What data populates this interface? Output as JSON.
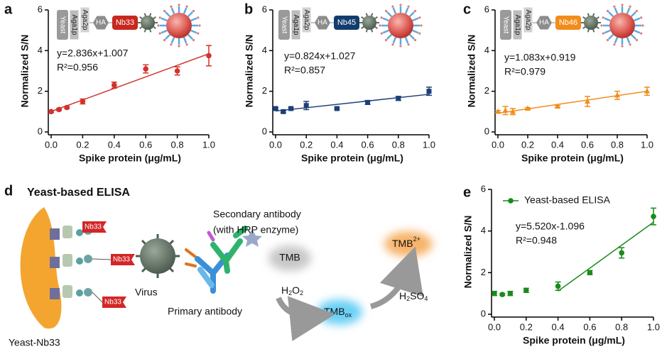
{
  "panel_labels": [
    "a",
    "b",
    "c",
    "d",
    "e"
  ],
  "chart_data": [
    {
      "type": "scatter",
      "x_label": "Spike protein (μg/mL)",
      "y_label": "Normalized S/N",
      "xlim": [
        0,
        1
      ],
      "ylim": [
        0,
        6
      ],
      "xticks": [
        {
          "value": 0,
          "label": "0.0"
        },
        {
          "value": 0.2,
          "label": "0.2"
        },
        {
          "value": 0.4,
          "label": "0.4"
        },
        {
          "value": 0.6,
          "label": "0.6"
        },
        {
          "value": 0.8,
          "label": "0.8"
        },
        {
          "value": 1,
          "label": "1.0"
        }
      ],
      "yticks": [
        0,
        2,
        4,
        6
      ],
      "x": [
        0,
        0.05,
        0.1,
        0.2,
        0.4,
        0.6,
        0.8,
        1.0
      ],
      "series": [
        {
          "color": "#d2322d",
          "marker": "circle",
          "values": [
            1.0,
            1.1,
            1.2,
            1.5,
            2.3,
            3.1,
            3.0,
            3.75
          ],
          "errors": [
            0.05,
            0.05,
            0.05,
            0.12,
            0.15,
            0.2,
            0.2,
            0.5
          ]
        }
      ],
      "fit": {
        "slope": 2.836,
        "intercept": 1.007
      },
      "annotations": [
        "y=2.836x+1.007",
        "R²=0.956"
      ],
      "inset": {
        "labels": [
          "Yeast",
          "Aga1p",
          "Aga2p",
          "HA",
          "Nb33"
        ],
        "color": "#c8281e"
      }
    },
    {
      "type": "scatter",
      "x_label": "Spike protein (μg/mL)",
      "y_label": "Normalized S/N",
      "xlim": [
        0,
        1
      ],
      "ylim": [
        0,
        6
      ],
      "xticks": [
        {
          "value": 0,
          "label": "0.0"
        },
        {
          "value": 0.2,
          "label": "0.2"
        },
        {
          "value": 0.4,
          "label": "0.4"
        },
        {
          "value": 0.6,
          "label": "0.6"
        },
        {
          "value": 0.8,
          "label": "0.8"
        },
        {
          "value": 1,
          "label": "1.0"
        }
      ],
      "yticks": [
        0,
        2,
        4,
        6
      ],
      "x": [
        0,
        0.05,
        0.1,
        0.2,
        0.4,
        0.6,
        0.8,
        1.0
      ],
      "series": [
        {
          "color": "#1d3f78",
          "marker": "square",
          "values": [
            1.15,
            1.0,
            1.15,
            1.3,
            1.15,
            1.45,
            1.65,
            2.0
          ],
          "errors": [
            0.05,
            0.05,
            0.05,
            0.2,
            0.05,
            0.1,
            0.1,
            0.2
          ]
        }
      ],
      "fit": {
        "slope": 0.824,
        "intercept": 1.027
      },
      "annotations": [
        "y=0.824x+1.027",
        "R²=0.857"
      ],
      "inset": {
        "labels": [
          "Yeast",
          "Aga1p",
          "Aga2p",
          "HA",
          "Nb45"
        ],
        "color": "#123c6e"
      }
    },
    {
      "type": "scatter",
      "x_label": "Spike protein (μg/mL)",
      "y_label": "Normalized S/N",
      "xlim": [
        0,
        1
      ],
      "ylim": [
        0,
        6
      ],
      "xticks": [
        {
          "value": 0,
          "label": "0.0"
        },
        {
          "value": 0.2,
          "label": "0.2"
        },
        {
          "value": 0.4,
          "label": "0.4"
        },
        {
          "value": 0.6,
          "label": "0.6"
        },
        {
          "value": 0.8,
          "label": "0.8"
        },
        {
          "value": 1,
          "label": "1.0"
        }
      ],
      "yticks": [
        0,
        2,
        4,
        6
      ],
      "x": [
        0,
        0.05,
        0.1,
        0.2,
        0.4,
        0.6,
        0.8,
        1.0
      ],
      "series": [
        {
          "color": "#f28c1c",
          "marker": "triangle",
          "values": [
            1.0,
            1.05,
            1.0,
            1.15,
            1.25,
            1.5,
            1.8,
            2.0
          ],
          "errors": [
            0.05,
            0.2,
            0.15,
            0.05,
            0.05,
            0.25,
            0.2,
            0.2
          ]
        }
      ],
      "fit": {
        "slope": 1.083,
        "intercept": 0.919
      },
      "annotations": [
        "y=1.083x+0.919",
        "R²=0.979"
      ],
      "inset": {
        "labels": [
          "Yeast",
          "Aga1p",
          "Aga2p",
          "HA",
          "Nb46"
        ],
        "color": "#f28c1c"
      }
    },
    {
      "type": "scatter",
      "x_label": "Spike protein (μg/mL)",
      "y_label": "Normalized S/N",
      "xlim": [
        0,
        1
      ],
      "ylim": [
        0,
        6
      ],
      "xticks": [
        {
          "value": 0,
          "label": "0.0"
        },
        {
          "value": 0.2,
          "label": "0.2"
        },
        {
          "value": 0.4,
          "label": "0.4"
        },
        {
          "value": 0.6,
          "label": "0.6"
        },
        {
          "value": 0.8,
          "label": "0.8"
        },
        {
          "value": 1,
          "label": "1.0"
        }
      ],
      "yticks": [
        0,
        2,
        4,
        6
      ],
      "x": [
        0,
        0.05,
        0.1,
        0.2,
        0.4,
        0.6,
        0.8,
        1.0
      ],
      "series": [
        {
          "name": "Yeast-based ELISA",
          "color": "#1a8a1a",
          "marker": "circle",
          "values": [
            1.0,
            0.95,
            1.0,
            1.15,
            1.35,
            2.0,
            2.95,
            4.7
          ],
          "errors": [
            0.1,
            0.05,
            0.1,
            0.1,
            0.2,
            0.1,
            0.25,
            0.4
          ]
        }
      ],
      "legend": "upper left",
      "fit": {
        "slope": 5.52,
        "intercept": -1.096,
        "xlim": [
          0.4,
          1
        ]
      },
      "annotations": [
        "y=5.520x-1.096",
        "R²=0.948"
      ]
    }
  ],
  "diagram": {
    "title": "Yeast-based ELISA",
    "tags": [
      "Nb33",
      "Nb33",
      "Nb33"
    ],
    "virus": "Virus",
    "secondary": [
      "Secondary antibody",
      "(with HRP enzyme)"
    ],
    "primary": "Primary antibody",
    "yeast": "Yeast-Nb33",
    "tmb": "TMB",
    "tmb_ox": [
      "TMB",
      "ox"
    ],
    "tmb_2": [
      "TMB",
      "2+"
    ],
    "h2o2": [
      "H",
      "2",
      "O",
      "2"
    ],
    "h2so4": [
      "H",
      "2",
      "SO",
      "4"
    ]
  }
}
